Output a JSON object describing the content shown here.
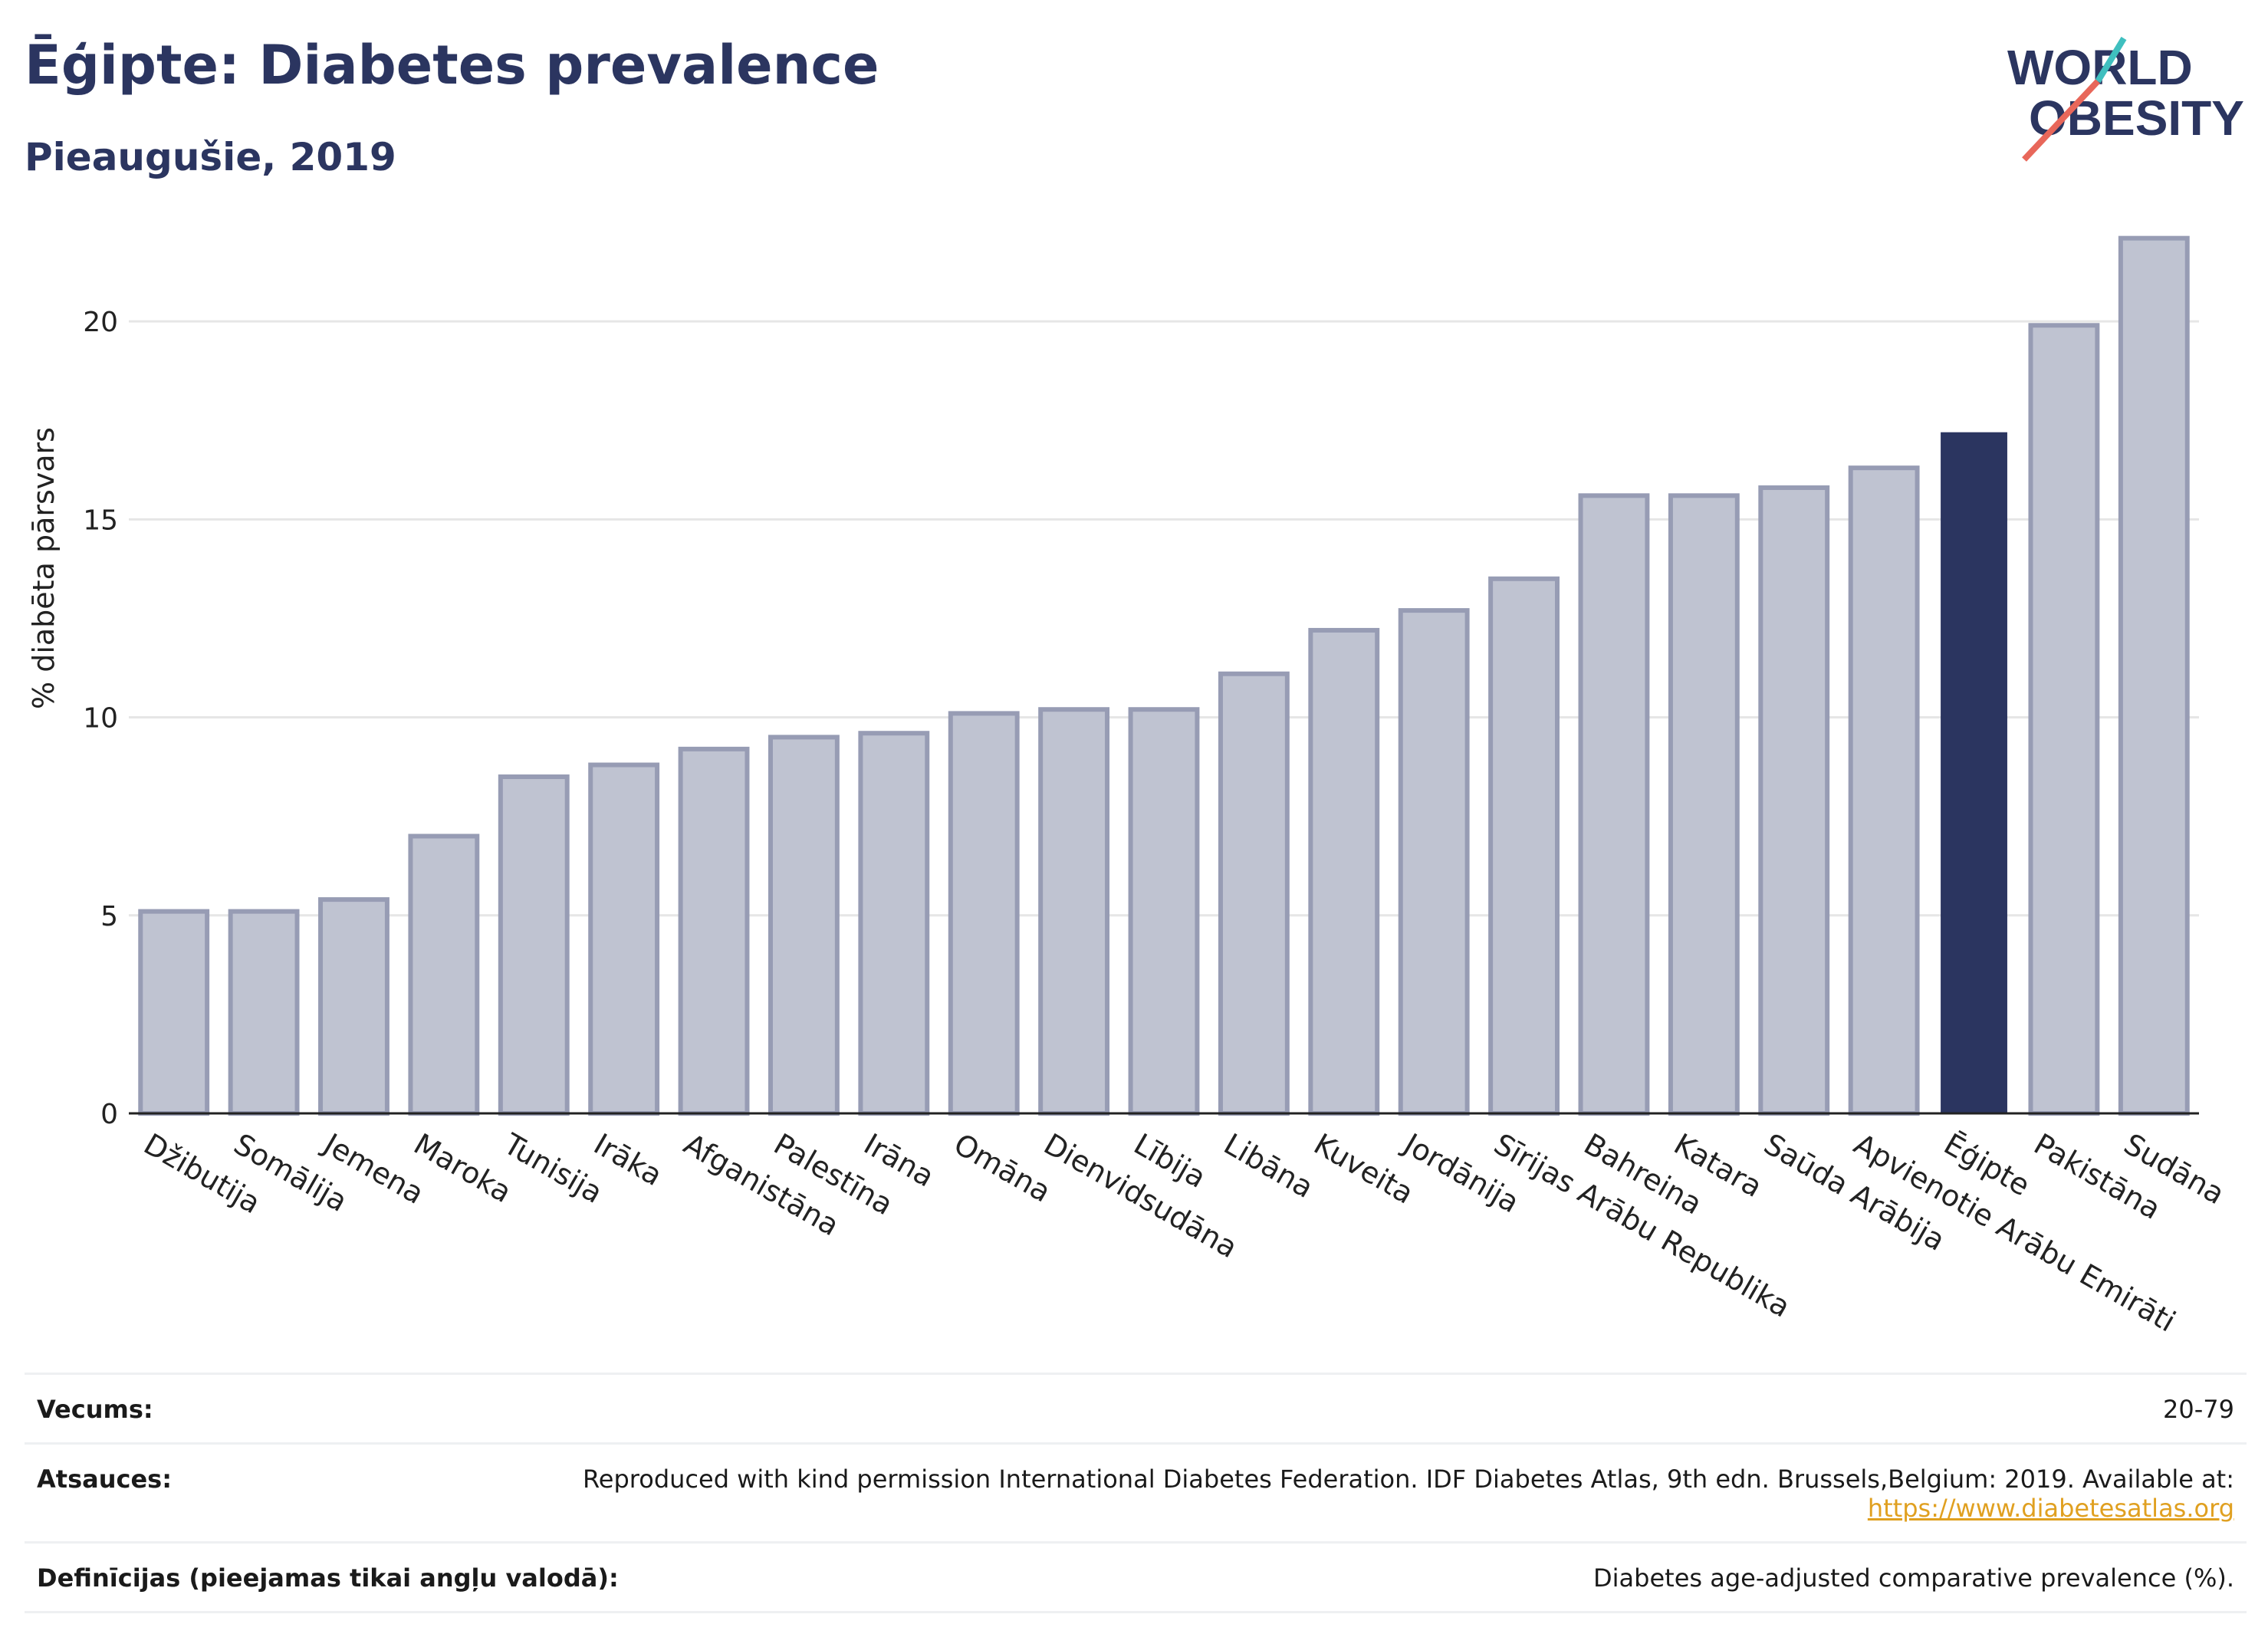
{
  "title": "Ēģipte: Diabetes prevalence",
  "subtitle": "Pieaugušie, 2019",
  "logo": {
    "line1": "WORLD",
    "line2": "OBESITY",
    "accent": "#e8675a",
    "accent2": "#3fbfbf"
  },
  "colors": {
    "bar": "#bfc3d1",
    "bar_stroke": "#979cb4",
    "highlight": "#2b3560",
    "axis": "#222222",
    "grid": "#e6e6e6"
  },
  "chart_data": {
    "type": "bar",
    "ylabel": "% diabēta pārsvars",
    "ylim": [
      0,
      22.5
    ],
    "yticks": [
      0,
      5,
      10,
      15,
      20
    ],
    "grid": true,
    "highlight": "Ēģipte",
    "categories": [
      "Džibutija",
      "Somālija",
      "Jemena",
      "Maroka",
      "Tunisija",
      "Irāka",
      "Afganistāna",
      "Palestīna",
      "Irāna",
      "Omāna",
      "Dienvidsudāna",
      "Lībija",
      "Libāna",
      "Kuveita",
      "Jordānija",
      "Sīrijas Arābu Republika",
      "Bahreina",
      "Katara",
      "Saūda Arābija",
      "Apvienotie Arābu Emirāti",
      "Ēģipte",
      "Pakistāna",
      "Sudāna"
    ],
    "values": [
      5.1,
      5.1,
      5.4,
      7.0,
      8.5,
      8.8,
      9.2,
      9.5,
      9.6,
      10.1,
      10.2,
      10.2,
      11.1,
      12.2,
      12.7,
      13.5,
      15.6,
      15.6,
      15.8,
      16.3,
      17.2,
      19.9,
      22.1
    ]
  },
  "footer": {
    "age_label": "Vecums:",
    "age_value": "20-79",
    "refs_label": "Atsauces:",
    "refs_text": "Reproduced with kind permission International Diabetes Federation. IDF Diabetes Atlas, 9th edn. Brussels,Belgium: 2019. Available at:",
    "refs_link": "https://www.diabetesatlas.org",
    "defs_label": "Definīcijas (pieejamas tikai angļu valodā):",
    "defs_text": "Diabetes age-adjusted comparative prevalence (%)."
  }
}
